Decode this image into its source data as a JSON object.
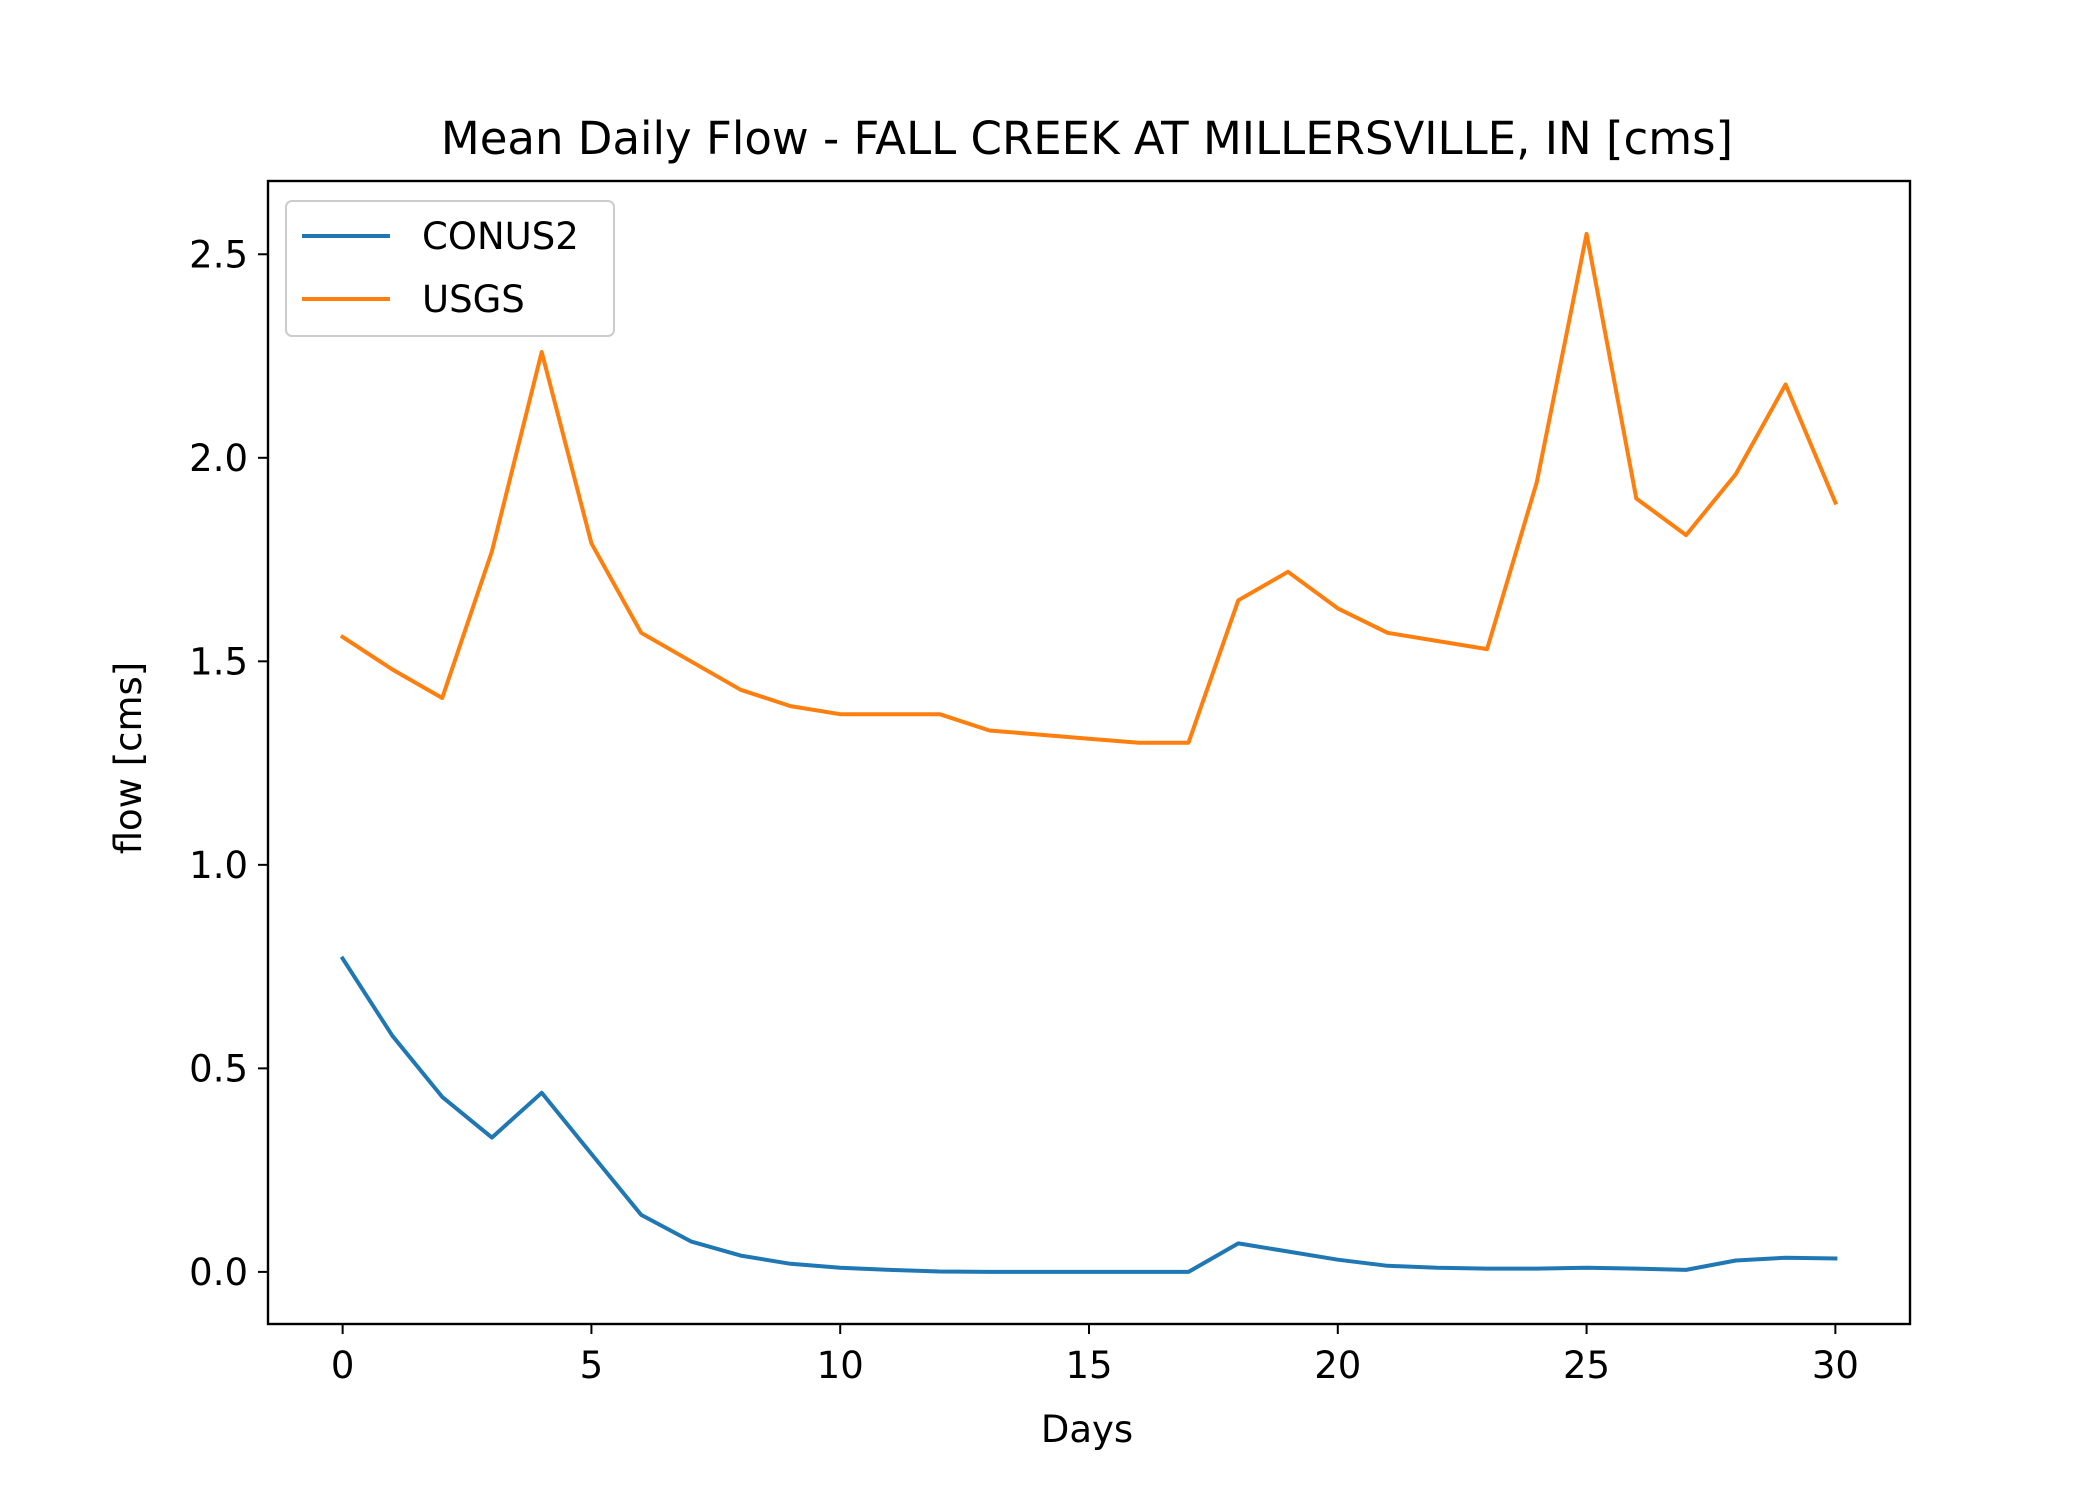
{
  "chart_data": {
    "type": "line",
    "title": "Mean Daily Flow - FALL CREEK AT MILLERSVILLE, IN [cms]",
    "xlabel": "Days",
    "ylabel": "flow [cms]",
    "xlim": [
      -1.5,
      31.5
    ],
    "ylim": [
      -0.128,
      2.68
    ],
    "xticks": [
      0,
      5,
      10,
      15,
      20,
      25,
      30
    ],
    "xtick_labels": [
      "0",
      "5",
      "10",
      "15",
      "20",
      "25",
      "30"
    ],
    "yticks": [
      0.0,
      0.5,
      1.0,
      1.5,
      2.0,
      2.5
    ],
    "ytick_labels": [
      "0.0",
      "0.5",
      "1.0",
      "1.5",
      "2.0",
      "2.5"
    ],
    "grid": false,
    "legend_position": "top-left",
    "x": [
      0,
      1,
      2,
      3,
      4,
      5,
      6,
      7,
      8,
      9,
      10,
      11,
      12,
      13,
      14,
      15,
      16,
      17,
      18,
      19,
      20,
      21,
      22,
      23,
      24,
      25,
      26,
      27,
      28,
      29,
      30
    ],
    "series": [
      {
        "name": "CONUS2",
        "color": "#1f77b4",
        "values": [
          0.77,
          0.58,
          0.43,
          0.33,
          0.44,
          0.29,
          0.14,
          0.075,
          0.04,
          0.02,
          0.01,
          0.005,
          0.001,
          0.0,
          0.0,
          0.0,
          0.0,
          0.0,
          0.07,
          0.05,
          0.03,
          0.015,
          0.01,
          0.008,
          0.008,
          0.01,
          0.008,
          0.005,
          0.028,
          0.035,
          0.033
        ]
      },
      {
        "name": "USGS",
        "color": "#ff7f0e",
        "values": [
          1.56,
          1.48,
          1.41,
          1.77,
          2.26,
          1.79,
          1.57,
          1.5,
          1.43,
          1.39,
          1.37,
          1.37,
          1.37,
          1.33,
          1.32,
          1.31,
          1.3,
          1.3,
          1.65,
          1.72,
          1.63,
          1.57,
          1.55,
          1.53,
          1.94,
          2.55,
          1.9,
          1.81,
          1.96,
          2.18,
          1.89
        ]
      }
    ]
  }
}
